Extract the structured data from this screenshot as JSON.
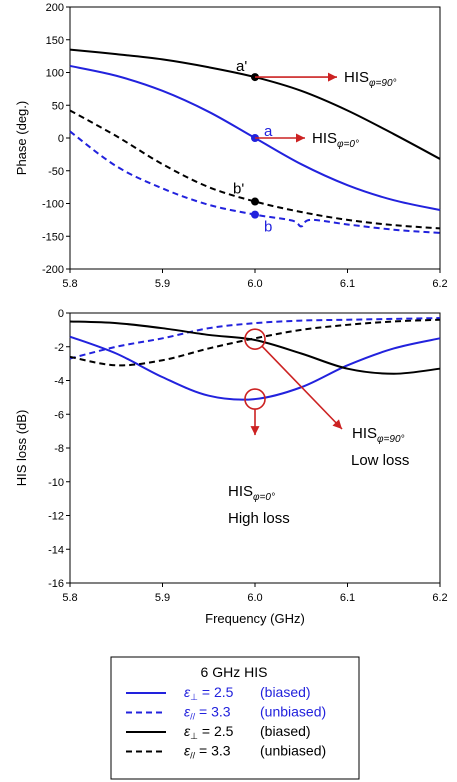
{
  "chart_data": [
    {
      "type": "line",
      "title": "",
      "xlabel": "",
      "ylabel": "Phase (deg.)",
      "xlim": [
        5.8,
        6.2
      ],
      "ylim": [
        -200,
        200
      ],
      "x_ticks": [
        "5.8",
        "5.9",
        "6.0",
        "6.1",
        "6.2"
      ],
      "y_ticks": [
        "200",
        "150",
        "100",
        "50",
        "0",
        "-50",
        "-100",
        "-150",
        "-200"
      ],
      "grid": false,
      "colors": {
        "blue": "#2222dd",
        "black": "#000000",
        "red": "#cc2222"
      },
      "series": [
        {
          "color": "#000000",
          "dash": false,
          "x": [
            5.8,
            5.85,
            5.9,
            5.95,
            6.0,
            6.05,
            6.1,
            6.15,
            6.2
          ],
          "y": [
            135,
            128,
            120,
            108,
            93,
            72,
            42,
            6,
            -32
          ]
        },
        {
          "color": "#2222dd",
          "dash": false,
          "x": [
            5.8,
            5.85,
            5.9,
            5.95,
            6.0,
            6.05,
            6.1,
            6.15,
            6.2
          ],
          "y": [
            110,
            95,
            72,
            40,
            0,
            -40,
            -72,
            -95,
            -110
          ]
        },
        {
          "color": "#000000",
          "dash": true,
          "x": [
            5.8,
            5.85,
            5.9,
            5.95,
            6.0,
            6.05,
            6.1,
            6.15,
            6.2
          ],
          "y": [
            42,
            3,
            -40,
            -75,
            -97,
            -113,
            -125,
            -133,
            -138
          ]
        },
        {
          "color": "#2222dd",
          "dash": true,
          "x": [
            5.8,
            5.85,
            5.9,
            5.95,
            6.0,
            6.04,
            6.05,
            6.06,
            6.1,
            6.15,
            6.2
          ],
          "y": [
            10,
            -43,
            -77,
            -102,
            -117,
            -126,
            -135,
            -125,
            -132,
            -140,
            -145
          ]
        }
      ],
      "points": [
        {
          "label": "a'",
          "x": 6.0,
          "y": 93,
          "color": "#000000"
        },
        {
          "label": "a",
          "x": 6.0,
          "y": 0,
          "color": "#2222dd"
        },
        {
          "label": "b'",
          "x": 6.0,
          "y": -97,
          "color": "#000000"
        },
        {
          "label": "b",
          "x": 6.0,
          "y": -117,
          "color": "#2222dd"
        }
      ],
      "annotations": [
        {
          "base": "HIS",
          "sub": "φ=90°",
          "ax": 6.0,
          "ay": 93
        },
        {
          "base": "HIS",
          "sub": "φ=0°",
          "ax": 6.0,
          "ay": 0
        }
      ]
    },
    {
      "type": "line",
      "title": "",
      "xlabel": "Frequency (GHz)",
      "ylabel": "HIS loss (dB)",
      "xlim": [
        5.8,
        6.2
      ],
      "ylim": [
        -16,
        0
      ],
      "x_ticks": [
        "5.8",
        "5.9",
        "6.0",
        "6.1",
        "6.2"
      ],
      "y_ticks": [
        "0",
        "-2",
        "-4",
        "-6",
        "-8",
        "-10",
        "-12",
        "-14",
        "-16"
      ],
      "grid": false,
      "series": [
        {
          "color": "#2222dd",
          "dash": false,
          "x": [
            5.8,
            5.85,
            5.9,
            5.95,
            6.0,
            6.05,
            6.1,
            6.15,
            6.2
          ],
          "y": [
            -1.4,
            -2.4,
            -3.8,
            -4.9,
            -5.1,
            -4.4,
            -3.1,
            -2.1,
            -1.5
          ]
        },
        {
          "color": "#2222dd",
          "dash": true,
          "x": [
            5.8,
            5.85,
            5.9,
            5.95,
            6.0,
            6.05,
            6.1,
            6.15,
            6.2
          ],
          "y": [
            -2.7,
            -2.0,
            -1.5,
            -0.9,
            -0.6,
            -0.45,
            -0.4,
            -0.35,
            -0.3
          ]
        },
        {
          "color": "#000000",
          "dash": false,
          "x": [
            5.8,
            5.85,
            5.9,
            5.95,
            6.0,
            6.05,
            6.1,
            6.15,
            6.2
          ],
          "y": [
            -0.5,
            -0.6,
            -0.9,
            -1.3,
            -1.6,
            -2.4,
            -3.3,
            -3.6,
            -3.3
          ]
        },
        {
          "color": "#000000",
          "dash": true,
          "x": [
            5.8,
            5.85,
            5.9,
            5.95,
            6.0,
            6.05,
            6.1,
            6.15,
            6.2
          ],
          "y": [
            -2.6,
            -3.1,
            -2.8,
            -2.1,
            -1.5,
            -1.0,
            -0.7,
            -0.5,
            -0.4
          ]
        }
      ],
      "circles": [
        {
          "x": 6.0,
          "y": -1.55
        },
        {
          "x": 6.0,
          "y": -5.1
        }
      ],
      "annotations": [
        {
          "base": "HIS",
          "sub": "φ=90°",
          "note": "Low loss",
          "ax": 6.0,
          "ay": -1.55
        },
        {
          "base": "HIS",
          "sub": "φ=0°",
          "note": "High loss",
          "ax": 6.0,
          "ay": -5.1
        }
      ]
    }
  ],
  "legend": {
    "title": "6 GHz HIS",
    "entries": [
      {
        "color": "#2222dd",
        "dash": false,
        "eps": "ε",
        "sub": "⊥",
        "value": " = 2.5",
        "state": "(biased)"
      },
      {
        "color": "#2222dd",
        "dash": true,
        "eps": "ε",
        "sub": "//",
        "value": " = 3.3",
        "state": "(unbiased)"
      },
      {
        "color": "#000000",
        "dash": false,
        "eps": "ε",
        "sub": "⊥",
        "value": " = 2.5",
        "state": "(biased)"
      },
      {
        "color": "#000000",
        "dash": true,
        "eps": "ε",
        "sub": "//",
        "value": " = 3.3",
        "state": "(unbiased)"
      }
    ]
  }
}
